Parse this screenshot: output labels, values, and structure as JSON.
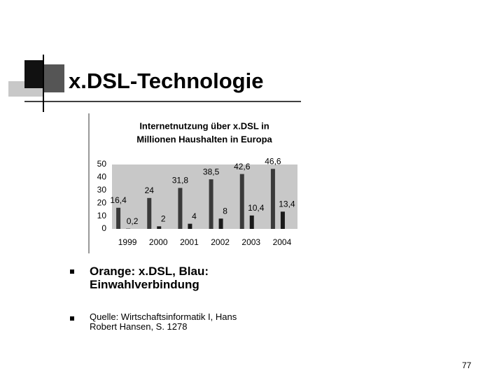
{
  "slide": {
    "title": "x.DSL-Technologie",
    "bullets": [
      "Orange: x.DSL, Blau: Einwahlverbindung",
      "Quelle: Wirtschaftsinformatik I, Hans Robert Hansen, S. 1278"
    ],
    "page_number": "77"
  },
  "chart_data": {
    "type": "bar",
    "title": [
      "Internetnutzung über x.DSL in",
      "Millionen Haushalten in Europa"
    ],
    "categories": [
      "1999",
      "2000",
      "2001",
      "2002",
      "2003",
      "2004"
    ],
    "series": [
      {
        "color": "#3a3a3a",
        "values": [
          16.4,
          24,
          31.8,
          38.5,
          42.6,
          46.6
        ],
        "value_labels": [
          "16,4",
          "24",
          "31,8",
          "38,5",
          "42,6",
          "46,6"
        ]
      },
      {
        "color": "#1a1a1a",
        "values": [
          0.2,
          2,
          4,
          8,
          10.4,
          13.4
        ],
        "value_labels": [
          "0,2",
          "2",
          "4",
          "8",
          "10,4",
          "13,4"
        ]
      }
    ],
    "ylim": [
      0,
      50
    ],
    "yticks": [
      0,
      10,
      20,
      30,
      40,
      50
    ],
    "grid": false
  }
}
